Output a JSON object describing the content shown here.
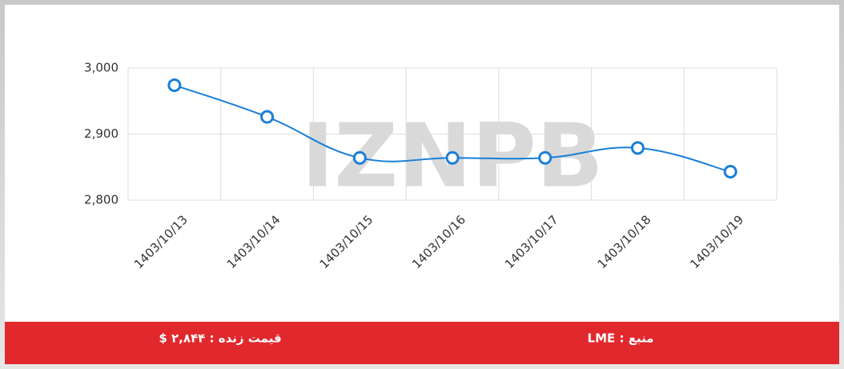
{
  "chart_data": {
    "type": "line",
    "categories": [
      "1403/10/13",
      "1403/10/14",
      "1403/10/15",
      "1403/10/16",
      "1403/10/17",
      "1403/10/18",
      "1403/10/19"
    ],
    "series": [
      {
        "name": "LME",
        "color": "#1a7fd6",
        "values": [
          2974,
          2926,
          2864,
          2864,
          2864,
          2879,
          2843
        ]
      }
    ],
    "ylim": [
      2800,
      3000
    ],
    "yticks": [
      {
        "value": 2800,
        "label": "2,800"
      },
      {
        "value": 2900,
        "label": "2,900"
      },
      {
        "value": 3000,
        "label": "3,000"
      }
    ],
    "grid": true
  },
  "watermark": "IZNPB",
  "footer": {
    "price": "قیمت زنده : ۲,۸۴۴ $",
    "source": "منبع : LME"
  }
}
